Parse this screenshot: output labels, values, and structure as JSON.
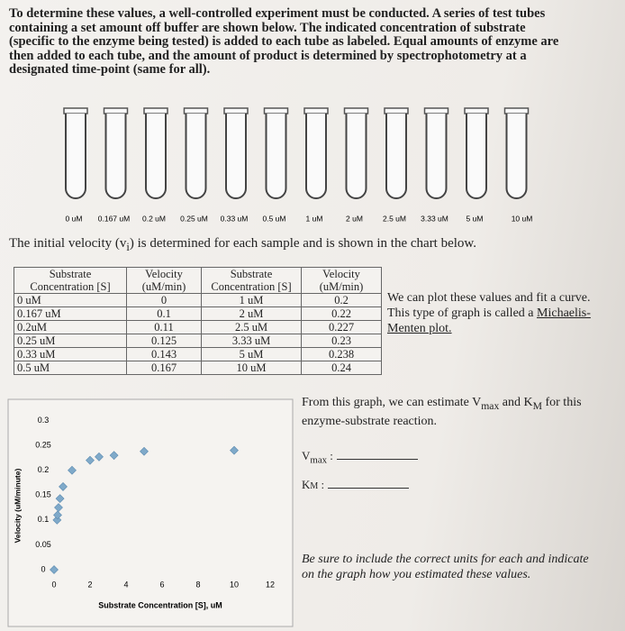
{
  "intro": "To determine these values, a well-controlled experiment must be conducted. A series of test tubes containing a set amount off buffer are shown below. The indicated concentration of substrate (specific to the enzyme being tested) is added to each tube as labeled. Equal amounts of enzyme are then added to each tube, and the amount of product is determined by spectrophotometry at a designated time-point (same for all).",
  "tubes": [
    "0 uM",
    "0.167 uM",
    "0.2 uM",
    "0.25 uM",
    "0.33 uM",
    "0.5 uM",
    "1 uM",
    "2 uM",
    "2.5 uM",
    "3.33 uM",
    "5 uM",
    "10 uM"
  ],
  "initial_velocity": [
    "The initial velocity (v",
    "i",
    ") is determined for each sample and is shown in the chart below."
  ],
  "table": {
    "header": [
      "Substrate Concentration [S]",
      "Velocity (uM/min)",
      "Substrate Concentration [S]",
      "Velocity (uM/min)"
    ],
    "rows": [
      [
        "0 uM",
        "0",
        "1 uM",
        "0.2"
      ],
      [
        "0.167 uM",
        "0.1",
        "2 uM",
        "0.22"
      ],
      [
        "0.2uM",
        "0.11",
        "2.5 uM",
        "0.227"
      ],
      [
        "0.25 uM",
        "0.125",
        "3.33 uM",
        "0.23"
      ],
      [
        "0.33 uM",
        "0.143",
        "5 uM",
        "0.238"
      ],
      [
        "0.5 uM",
        "0.167",
        "10 uM",
        "0.24"
      ]
    ]
  },
  "side_note": [
    "We can plot these values and fit a curve. This type of graph is called a",
    "Michaelis-Menten plot."
  ],
  "chart": {
    "type": "scatter",
    "y_label": "Velocity (uM/minute)",
    "x_label": "Substrate Concentration [S], uM",
    "color": "#7fa9c9",
    "x": [
      0,
      0.167,
      0.2,
      0.25,
      0.33,
      0.5,
      1,
      2,
      2.5,
      3.33,
      5,
      10
    ],
    "y": [
      0,
      0.1,
      0.11,
      0.125,
      0.143,
      0.167,
      0.2,
      0.22,
      0.227,
      0.23,
      0.238,
      0.24
    ],
    "xlim": [
      0,
      13
    ],
    "xticks": [
      0,
      2,
      4,
      6,
      8,
      10,
      12
    ],
    "ylim": [
      0,
      0.33
    ],
    "yticks": [
      0,
      0.05,
      0.1,
      0.15,
      0.2,
      0.25,
      0.3
    ]
  },
  "question": [
    "From this graph, we can estimate V",
    "max",
    " and K",
    "M",
    " for this enzyme-substrate reaction."
  ],
  "vmax": [
    "V",
    "max",
    " :"
  ],
  "km": [
    "K",
    "M",
    " :"
  ],
  "instruction": "Be sure to include the correct units for each and indicate on the graph how you estimated these values."
}
